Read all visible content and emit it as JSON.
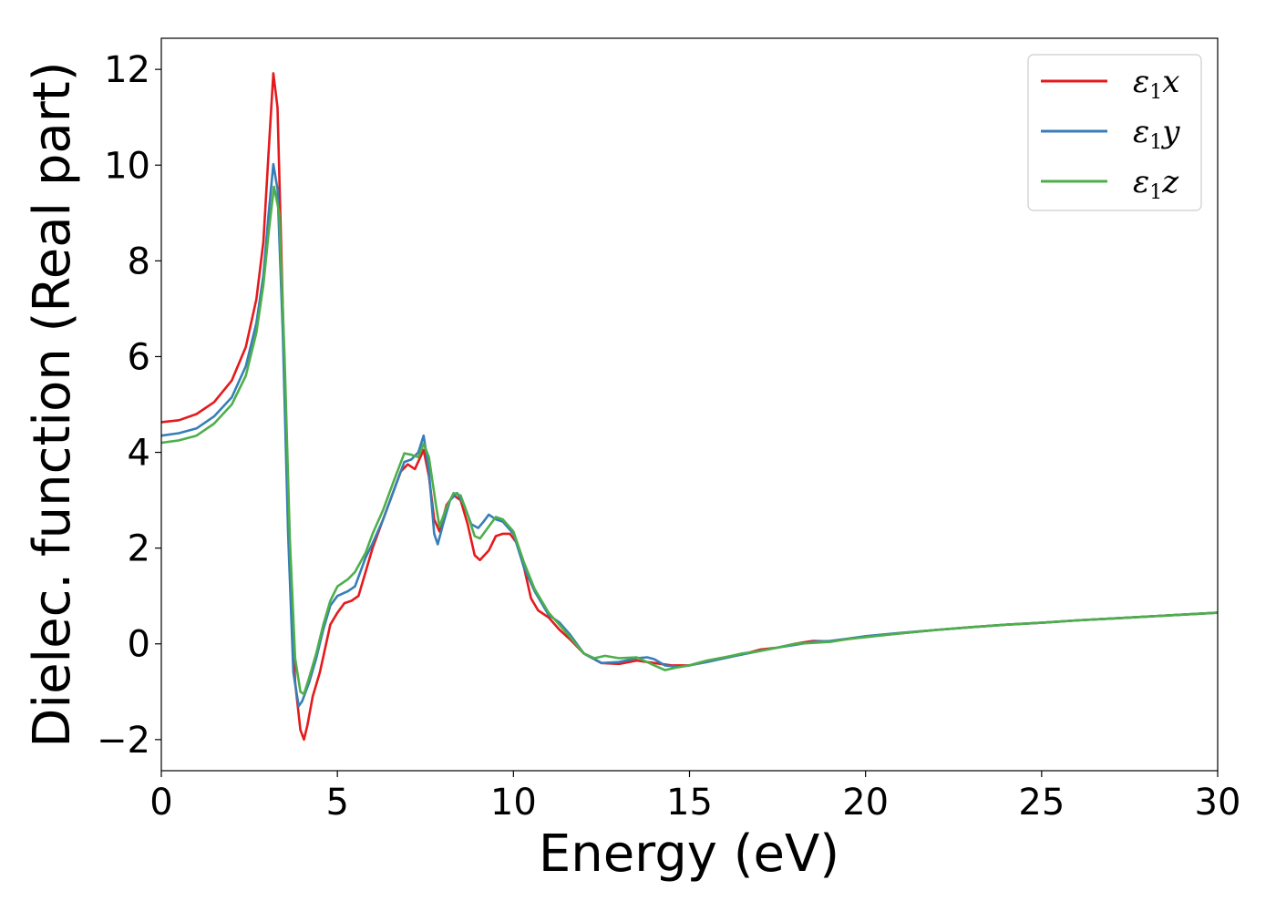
{
  "chart_data": {
    "type": "line",
    "title": "",
    "xlabel": "Energy (eV)",
    "ylabel": "Dielec. function (Real part)",
    "xlim": [
      0,
      30
    ],
    "ylim": [
      -2.65,
      12.65
    ],
    "x_ticks": [
      {
        "value": 0,
        "label": "0"
      },
      {
        "value": 5,
        "label": "5"
      },
      {
        "value": 10,
        "label": "10"
      },
      {
        "value": 15,
        "label": "15"
      },
      {
        "value": 20,
        "label": "20"
      },
      {
        "value": 25,
        "label": "25"
      },
      {
        "value": 30,
        "label": "30"
      }
    ],
    "y_ticks": [
      {
        "value": -2,
        "label": "−2"
      },
      {
        "value": 0,
        "label": "0"
      },
      {
        "value": 2,
        "label": "2"
      },
      {
        "value": 4,
        "label": "4"
      },
      {
        "value": 6,
        "label": "6"
      },
      {
        "value": 8,
        "label": "8"
      },
      {
        "value": 10,
        "label": "10"
      },
      {
        "value": 12,
        "label": "12"
      }
    ],
    "grid": false,
    "legend_position": "top-right",
    "series": [
      {
        "name": "ε1x",
        "base": "ε",
        "sub": "1",
        "var": "x",
        "color": "#e41a1c",
        "points": [
          [
            0,
            4.63
          ],
          [
            0.5,
            4.67
          ],
          [
            1.0,
            4.8
          ],
          [
            1.5,
            5.05
          ],
          [
            2.0,
            5.5
          ],
          [
            2.4,
            6.2
          ],
          [
            2.7,
            7.2
          ],
          [
            2.9,
            8.4
          ],
          [
            3.05,
            10.3
          ],
          [
            3.18,
            11.92
          ],
          [
            3.3,
            11.2
          ],
          [
            3.45,
            7.0
          ],
          [
            3.6,
            2.5
          ],
          [
            3.8,
            -0.8
          ],
          [
            3.95,
            -1.8
          ],
          [
            4.05,
            -2.0
          ],
          [
            4.15,
            -1.7
          ],
          [
            4.3,
            -1.1
          ],
          [
            4.5,
            -0.6
          ],
          [
            4.8,
            0.4
          ],
          [
            5.0,
            0.65
          ],
          [
            5.2,
            0.85
          ],
          [
            5.4,
            0.9
          ],
          [
            5.6,
            1.0
          ],
          [
            5.8,
            1.5
          ],
          [
            6.0,
            2.0
          ],
          [
            6.2,
            2.4
          ],
          [
            6.5,
            3.0
          ],
          [
            6.8,
            3.6
          ],
          [
            7.0,
            3.75
          ],
          [
            7.2,
            3.65
          ],
          [
            7.45,
            4.05
          ],
          [
            7.6,
            3.5
          ],
          [
            7.75,
            2.6
          ],
          [
            7.9,
            2.35
          ],
          [
            8.1,
            2.9
          ],
          [
            8.3,
            3.1
          ],
          [
            8.5,
            3.0
          ],
          [
            8.7,
            2.5
          ],
          [
            8.9,
            1.85
          ],
          [
            9.05,
            1.75
          ],
          [
            9.3,
            1.95
          ],
          [
            9.5,
            2.25
          ],
          [
            9.7,
            2.3
          ],
          [
            9.9,
            2.3
          ],
          [
            10.1,
            2.1
          ],
          [
            10.3,
            1.6
          ],
          [
            10.5,
            0.95
          ],
          [
            10.7,
            0.7
          ],
          [
            11.0,
            0.55
          ],
          [
            11.3,
            0.3
          ],
          [
            11.6,
            0.1
          ],
          [
            12.0,
            -0.2
          ],
          [
            12.5,
            -0.4
          ],
          [
            13.0,
            -0.42
          ],
          [
            13.5,
            -0.35
          ],
          [
            14.0,
            -0.4
          ],
          [
            14.5,
            -0.45
          ],
          [
            15.0,
            -0.45
          ],
          [
            15.5,
            -0.35
          ],
          [
            16.0,
            -0.28
          ],
          [
            16.5,
            -0.22
          ],
          [
            17.0,
            -0.12
          ],
          [
            17.5,
            -0.08
          ],
          [
            18.0,
            0.0
          ],
          [
            18.5,
            0.06
          ],
          [
            19.0,
            0.05
          ],
          [
            19.5,
            0.1
          ],
          [
            20.0,
            0.15
          ],
          [
            21.0,
            0.22
          ],
          [
            22.0,
            0.29
          ],
          [
            23.0,
            0.35
          ],
          [
            24.0,
            0.4
          ],
          [
            25.0,
            0.44
          ],
          [
            26.0,
            0.49
          ],
          [
            27.0,
            0.53
          ],
          [
            28.0,
            0.57
          ],
          [
            29.0,
            0.61
          ],
          [
            30.0,
            0.65
          ]
        ]
      },
      {
        "name": "ε1y",
        "base": "ε",
        "sub": "1",
        "var": "y",
        "color": "#377eb8",
        "points": [
          [
            0,
            4.35
          ],
          [
            0.5,
            4.4
          ],
          [
            1.0,
            4.5
          ],
          [
            1.5,
            4.75
          ],
          [
            2.0,
            5.15
          ],
          [
            2.4,
            5.8
          ],
          [
            2.7,
            6.7
          ],
          [
            2.9,
            7.7
          ],
          [
            3.05,
            9.0
          ],
          [
            3.18,
            10.02
          ],
          [
            3.3,
            9.5
          ],
          [
            3.45,
            6.5
          ],
          [
            3.6,
            2.3
          ],
          [
            3.75,
            -0.6
          ],
          [
            3.9,
            -1.3
          ],
          [
            4.0,
            -1.2
          ],
          [
            4.2,
            -0.8
          ],
          [
            4.4,
            -0.3
          ],
          [
            4.6,
            0.3
          ],
          [
            4.8,
            0.8
          ],
          [
            5.0,
            1.0
          ],
          [
            5.3,
            1.1
          ],
          [
            5.5,
            1.2
          ],
          [
            5.8,
            1.8
          ],
          [
            6.0,
            2.1
          ],
          [
            6.3,
            2.6
          ],
          [
            6.6,
            3.2
          ],
          [
            6.9,
            3.8
          ],
          [
            7.1,
            3.85
          ],
          [
            7.3,
            4.0
          ],
          [
            7.45,
            4.35
          ],
          [
            7.6,
            3.6
          ],
          [
            7.75,
            2.3
          ],
          [
            7.85,
            2.08
          ],
          [
            8.0,
            2.5
          ],
          [
            8.2,
            3.0
          ],
          [
            8.4,
            3.15
          ],
          [
            8.6,
            2.9
          ],
          [
            8.8,
            2.5
          ],
          [
            9.0,
            2.42
          ],
          [
            9.15,
            2.55
          ],
          [
            9.3,
            2.7
          ],
          [
            9.5,
            2.6
          ],
          [
            9.7,
            2.55
          ],
          [
            10.0,
            2.3
          ],
          [
            10.3,
            1.6
          ],
          [
            10.6,
            1.1
          ],
          [
            11.0,
            0.6
          ],
          [
            11.3,
            0.45
          ],
          [
            11.6,
            0.2
          ],
          [
            12.0,
            -0.2
          ],
          [
            12.5,
            -0.4
          ],
          [
            13.0,
            -0.38
          ],
          [
            13.5,
            -0.3
          ],
          [
            13.8,
            -0.28
          ],
          [
            14.0,
            -0.32
          ],
          [
            14.3,
            -0.45
          ],
          [
            14.7,
            -0.48
          ],
          [
            15.0,
            -0.45
          ],
          [
            15.5,
            -0.38
          ],
          [
            16.0,
            -0.3
          ],
          [
            16.5,
            -0.22
          ],
          [
            17.0,
            -0.15
          ],
          [
            17.5,
            -0.08
          ],
          [
            18.0,
            -0.02
          ],
          [
            18.5,
            0.04
          ],
          [
            19.0,
            0.06
          ],
          [
            19.5,
            0.11
          ],
          [
            20.0,
            0.16
          ],
          [
            21.0,
            0.23
          ],
          [
            22.0,
            0.29
          ],
          [
            23.0,
            0.35
          ],
          [
            24.0,
            0.4
          ],
          [
            25.0,
            0.44
          ],
          [
            26.0,
            0.49
          ],
          [
            27.0,
            0.53
          ],
          [
            28.0,
            0.57
          ],
          [
            29.0,
            0.61
          ],
          [
            30.0,
            0.65
          ]
        ]
      },
      {
        "name": "ε1z",
        "base": "ε",
        "sub": "1",
        "var": "z",
        "color": "#4daf4a",
        "points": [
          [
            0,
            4.2
          ],
          [
            0.5,
            4.25
          ],
          [
            1.0,
            4.35
          ],
          [
            1.5,
            4.6
          ],
          [
            2.0,
            5.0
          ],
          [
            2.4,
            5.6
          ],
          [
            2.7,
            6.5
          ],
          [
            2.9,
            7.5
          ],
          [
            3.05,
            8.6
          ],
          [
            3.2,
            9.55
          ],
          [
            3.35,
            9.0
          ],
          [
            3.5,
            6.0
          ],
          [
            3.65,
            2.2
          ],
          [
            3.8,
            -0.3
          ],
          [
            3.95,
            -1.0
          ],
          [
            4.05,
            -1.05
          ],
          [
            4.2,
            -0.7
          ],
          [
            4.4,
            -0.2
          ],
          [
            4.6,
            0.4
          ],
          [
            4.8,
            0.9
          ],
          [
            5.0,
            1.2
          ],
          [
            5.3,
            1.35
          ],
          [
            5.5,
            1.5
          ],
          [
            5.8,
            1.9
          ],
          [
            6.0,
            2.3
          ],
          [
            6.3,
            2.8
          ],
          [
            6.6,
            3.4
          ],
          [
            6.9,
            3.98
          ],
          [
            7.1,
            3.95
          ],
          [
            7.3,
            3.9
          ],
          [
            7.45,
            4.18
          ],
          [
            7.6,
            3.9
          ],
          [
            7.8,
            2.9
          ],
          [
            7.9,
            2.45
          ],
          [
            8.1,
            2.85
          ],
          [
            8.3,
            3.15
          ],
          [
            8.5,
            3.1
          ],
          [
            8.7,
            2.7
          ],
          [
            8.9,
            2.25
          ],
          [
            9.05,
            2.2
          ],
          [
            9.3,
            2.45
          ],
          [
            9.5,
            2.65
          ],
          [
            9.7,
            2.6
          ],
          [
            10.0,
            2.35
          ],
          [
            10.3,
            1.7
          ],
          [
            10.6,
            1.15
          ],
          [
            11.0,
            0.65
          ],
          [
            11.3,
            0.4
          ],
          [
            11.6,
            0.15
          ],
          [
            12.0,
            -0.2
          ],
          [
            12.3,
            -0.3
          ],
          [
            12.6,
            -0.25
          ],
          [
            13.0,
            -0.3
          ],
          [
            13.5,
            -0.28
          ],
          [
            14.0,
            -0.45
          ],
          [
            14.3,
            -0.55
          ],
          [
            14.6,
            -0.5
          ],
          [
            15.0,
            -0.45
          ],
          [
            15.5,
            -0.35
          ],
          [
            16.0,
            -0.28
          ],
          [
            16.5,
            -0.2
          ],
          [
            17.0,
            -0.15
          ],
          [
            17.5,
            -0.08
          ],
          [
            18.0,
            0.0
          ],
          [
            18.5,
            0.02
          ],
          [
            19.0,
            0.04
          ],
          [
            19.5,
            0.1
          ],
          [
            20.0,
            0.14
          ],
          [
            21.0,
            0.22
          ],
          [
            22.0,
            0.29
          ],
          [
            23.0,
            0.35
          ],
          [
            24.0,
            0.4
          ],
          [
            25.0,
            0.44
          ],
          [
            26.0,
            0.49
          ],
          [
            27.0,
            0.53
          ],
          [
            28.0,
            0.57
          ],
          [
            29.0,
            0.61
          ],
          [
            30.0,
            0.65
          ]
        ]
      }
    ]
  }
}
